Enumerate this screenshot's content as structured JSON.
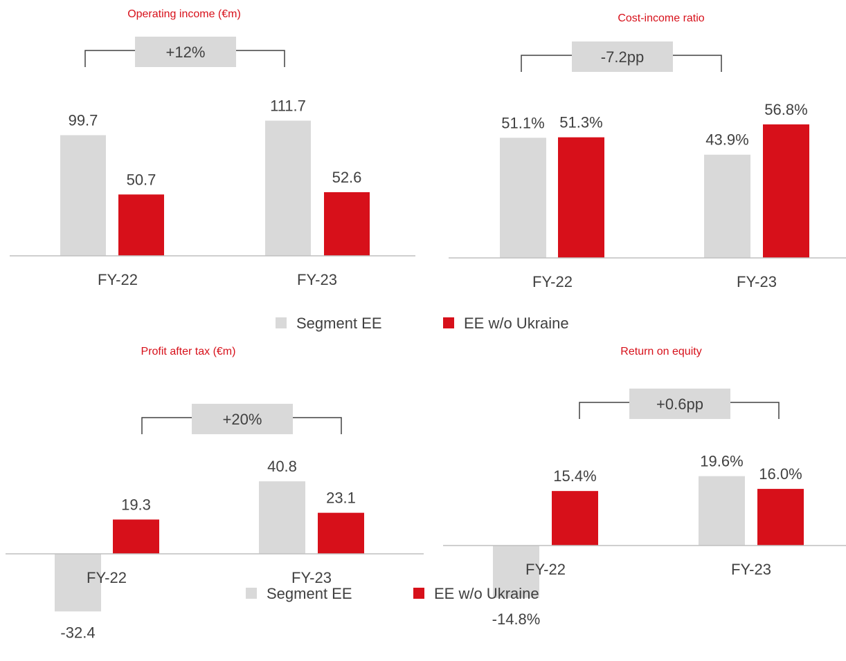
{
  "colors": {
    "segment": "#d9d9d9",
    "ukraine": "#d7101a",
    "axis": "#7f7f7f",
    "bracket": "#404040",
    "title": "#d7101a"
  },
  "legend": [
    {
      "name": "Segment EE",
      "color": "#d9d9d9"
    },
    {
      "name": "EE w/o Ukraine",
      "color": "#d7101a"
    }
  ],
  "chart_data": [
    {
      "type": "bar",
      "title": "Operating income (€m)",
      "categories": [
        "FY-22",
        "FY-23"
      ],
      "series": [
        {
          "name": "Segment EE",
          "values": [
            99.7,
            111.7
          ],
          "labels": [
            "99.7",
            "111.7"
          ]
        },
        {
          "name": "EE w/o Ukraine",
          "values": [
            50.7,
            52.6
          ],
          "labels": [
            "50.7",
            "52.6"
          ]
        }
      ],
      "annotation": "+12%"
    },
    {
      "type": "bar",
      "title": "Cost-income ratio",
      "categories": [
        "FY-22",
        "FY-23"
      ],
      "series": [
        {
          "name": "Segment EE",
          "values": [
            51.1,
            43.9
          ],
          "labels": [
            "51.1%",
            "43.9%"
          ]
        },
        {
          "name": "EE w/o Ukraine",
          "values": [
            51.3,
            56.8
          ],
          "labels": [
            "51.3%",
            "56.8%"
          ]
        }
      ],
      "annotation": "-7.2pp"
    },
    {
      "type": "bar",
      "title": "Profit after tax (€m)",
      "categories": [
        "FY-22",
        "FY-23"
      ],
      "series": [
        {
          "name": "Segment EE",
          "values": [
            -32.4,
            40.8
          ],
          "labels": [
            "-32.4",
            "40.8"
          ]
        },
        {
          "name": "EE w/o Ukraine",
          "values": [
            19.3,
            23.1
          ],
          "labels": [
            "19.3",
            "23.1"
          ]
        }
      ],
      "annotation": "+20%"
    },
    {
      "type": "bar",
      "title": "Return on equity",
      "categories": [
        "FY-22",
        "FY-23"
      ],
      "series": [
        {
          "name": "Segment EE",
          "values": [
            -14.8,
            19.6
          ],
          "labels": [
            "-14.8%",
            "19.6%"
          ]
        },
        {
          "name": "EE w/o Ukraine",
          "values": [
            15.4,
            16.0
          ],
          "labels": [
            "15.4%",
            "16.0%"
          ]
        }
      ],
      "annotation": "+0.6pp"
    }
  ]
}
